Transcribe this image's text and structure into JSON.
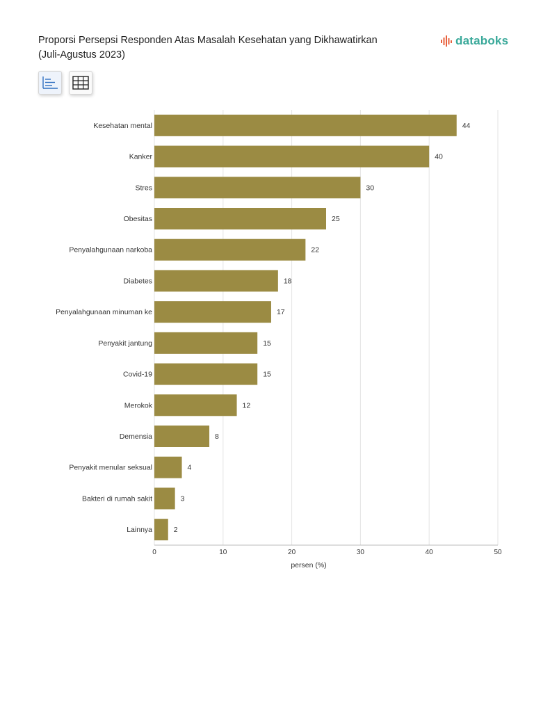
{
  "header": {
    "title_line1": "Proporsi Persepsi Responden Atas Masalah Kesehatan yang Dikhawatirkan",
    "title_line2": "(Juli-Agustus 2023)",
    "brand": "databoks"
  },
  "toolbar": {
    "chart_view_icon": "bar-chart-icon",
    "table_view_icon": "table-grid-icon"
  },
  "colors": {
    "bar": "#9b8b43",
    "grid": "#e3e3e3",
    "brand_teal": "#3aa99a",
    "brand_orange": "#e8603c",
    "icon_blue": "#2f6fc0"
  },
  "chart_data": {
    "type": "bar",
    "orientation": "horizontal",
    "title": "Proporsi Persepsi Responden Atas Masalah Kesehatan yang Dikhawatirkan (Juli-Agustus 2023)",
    "categories": [
      "Kesehatan mental",
      "Kanker",
      "Stres",
      "Obesitas",
      "Penyalahgunaan narkoba",
      "Diabetes",
      "Penyalahgunaan minuman ke",
      "Penyakit jantung",
      "Covid-19",
      "Merokok",
      "Demensia",
      "Penyakit menular seksual",
      "Bakteri di rumah sakit",
      "Lainnya"
    ],
    "values": [
      44,
      40,
      30,
      25,
      22,
      18,
      17,
      15,
      15,
      12,
      8,
      4,
      3,
      2
    ],
    "xlabel": "persen (%)",
    "ylabel": "",
    "xlim": [
      0,
      50
    ],
    "xticks": [
      0,
      10,
      20,
      30,
      40,
      50
    ],
    "grid": true,
    "legend": "none"
  }
}
